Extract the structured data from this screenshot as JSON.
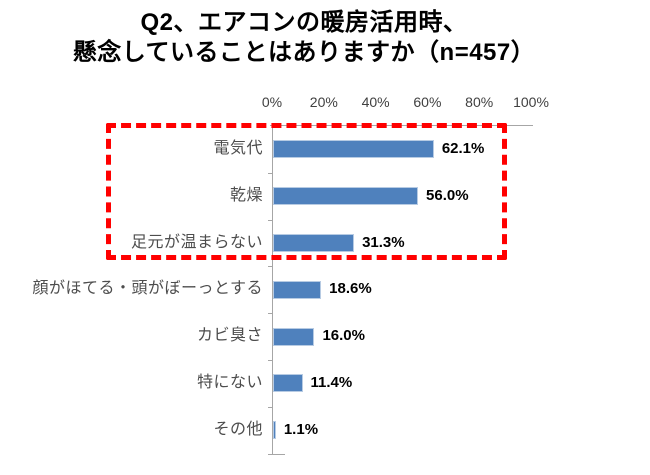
{
  "title": {
    "line1": "Q2、エアコンの暖房活用時、",
    "line2": "懸念していることはありますか（n=457）"
  },
  "chart_data": {
    "type": "bar",
    "orientation": "horizontal",
    "title": "Q2、エアコンの暖房活用時、懸念していることはありますか（n=457）",
    "sample_size": 457,
    "categories": [
      "電気代",
      "乾燥",
      "足元が温まらない",
      "顔がほてる・頭がぼーっとする",
      "カビ臭さ",
      "特にない",
      "その他"
    ],
    "values": [
      62.1,
      56.0,
      31.3,
      18.6,
      16.0,
      11.4,
      1.1
    ],
    "value_labels": [
      "62.1%",
      "56.0%",
      "31.3%",
      "18.6%",
      "16.0%",
      "11.4%",
      "1.1%"
    ],
    "x_axis": {
      "position": "top",
      "min": 0,
      "max": 100,
      "ticks": [
        "0%",
        "20%",
        "40%",
        "60%",
        "80%",
        "100%"
      ]
    },
    "legend": "none",
    "grid": "off",
    "highlight_box": {
      "applies_to": [
        "電気代",
        "乾燥",
        "足元が温まらない"
      ],
      "style": "dashed",
      "color": "#ff0000"
    }
  },
  "colors": {
    "bar": "#4f81bd",
    "bar_border": "#b7cbe3",
    "axis": "#a6a6a6",
    "category_text": "#4d4d4d",
    "tick_text": "#404040",
    "value_text": "#000000",
    "highlight": "#ff0000",
    "background": "#ffffff"
  }
}
